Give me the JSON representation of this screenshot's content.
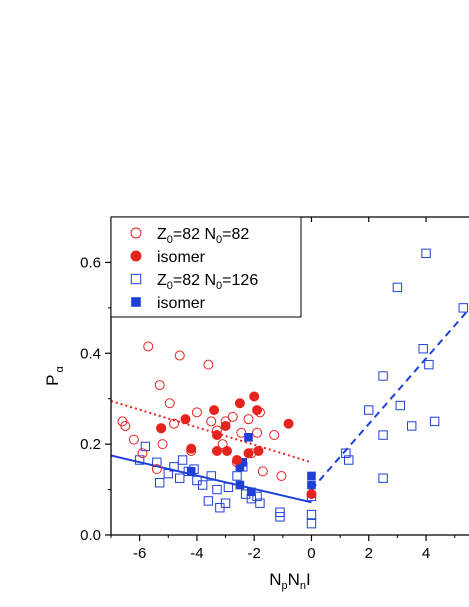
{
  "chart_data": {
    "type": "scatter",
    "xlabel": {
      "base": "N",
      "sub1": "p",
      "mid": "N",
      "sub2": "n",
      "tail": "I"
    },
    "ylabel": {
      "base": "P",
      "sub": "α"
    },
    "xlim": [
      -7,
      5.5
    ],
    "ylim": [
      0.0,
      0.7
    ],
    "xticks": [
      -6,
      -4,
      -2,
      0,
      2,
      4
    ],
    "yticks": [
      0.0,
      0.2,
      0.4,
      0.6
    ],
    "xtick_labels": [
      "-6",
      "-4",
      "-2",
      "0",
      "2",
      "4"
    ],
    "ytick_labels": [
      "0.0",
      "0.2",
      "0.4",
      "0.6"
    ],
    "legend_position": "top-left",
    "legend": [
      {
        "series": "red_open",
        "marker": "circle-open",
        "color": "#e8231f",
        "parts": [
          "Z",
          "0",
          "=82 N",
          "0",
          "=82"
        ]
      },
      {
        "series": "red_filled",
        "marker": "circle-filled",
        "color": "#e8231f",
        "parts": [
          "isomer"
        ]
      },
      {
        "series": "blue_open",
        "marker": "square-open",
        "color": "#1f3fd8",
        "parts": [
          "Z",
          "0",
          "=82 N",
          "0",
          "=126"
        ]
      },
      {
        "series": "blue_filled",
        "marker": "square-filled",
        "color": "#1f3fd8",
        "parts": [
          "isomer"
        ]
      }
    ],
    "series": [
      {
        "id": "red_open",
        "marker": "circle-open",
        "color": "#e8231f",
        "points": [
          [
            -6.6,
            0.25
          ],
          [
            -6.5,
            0.24
          ],
          [
            -6.2,
            0.21
          ],
          [
            -5.9,
            0.18
          ],
          [
            -5.7,
            0.415
          ],
          [
            -5.3,
            0.33
          ],
          [
            -5.25,
            0.235
          ],
          [
            -5.2,
            0.2
          ],
          [
            -4.95,
            0.29
          ],
          [
            -4.8,
            0.245
          ],
          [
            -4.6,
            0.395
          ],
          [
            -4.2,
            0.185
          ],
          [
            -4.0,
            0.27
          ],
          [
            -3.6,
            0.375
          ],
          [
            -3.5,
            0.25
          ],
          [
            -3.3,
            0.23
          ],
          [
            -3.1,
            0.2
          ],
          [
            -3.0,
            0.25
          ],
          [
            -2.75,
            0.26
          ],
          [
            -2.6,
            0.16
          ],
          [
            -2.45,
            0.225
          ],
          [
            -2.2,
            0.255
          ],
          [
            -2.1,
            0.18
          ],
          [
            -1.9,
            0.225
          ],
          [
            -1.8,
            0.27
          ],
          [
            -1.7,
            0.14
          ],
          [
            -1.3,
            0.22
          ],
          [
            -1.05,
            0.13
          ],
          [
            -5.4,
            0.145
          ]
        ]
      },
      {
        "id": "red_filled",
        "marker": "circle-filled",
        "color": "#e8231f",
        "points": [
          [
            -5.25,
            0.235
          ],
          [
            -4.4,
            0.255
          ],
          [
            -4.2,
            0.19
          ],
          [
            -3.4,
            0.275
          ],
          [
            -3.3,
            0.22
          ],
          [
            -3.3,
            0.185
          ],
          [
            -3.0,
            0.24
          ],
          [
            -2.95,
            0.185
          ],
          [
            -2.6,
            0.165
          ],
          [
            -2.5,
            0.29
          ],
          [
            -2.2,
            0.18
          ],
          [
            -2.0,
            0.305
          ],
          [
            -1.9,
            0.275
          ],
          [
            -1.85,
            0.185
          ],
          [
            -0.8,
            0.245
          ],
          [
            0.0,
            0.09
          ]
        ]
      },
      {
        "id": "blue_open",
        "marker": "square-open",
        "color": "#1f3fd8",
        "points": [
          [
            -6.0,
            0.165
          ],
          [
            -5.8,
            0.195
          ],
          [
            -5.4,
            0.16
          ],
          [
            -5.3,
            0.115
          ],
          [
            -5.0,
            0.135
          ],
          [
            -4.8,
            0.15
          ],
          [
            -4.6,
            0.125
          ],
          [
            -4.5,
            0.165
          ],
          [
            -4.3,
            0.14
          ],
          [
            -4.1,
            0.145
          ],
          [
            -4.0,
            0.12
          ],
          [
            -3.8,
            0.11
          ],
          [
            -3.6,
            0.075
          ],
          [
            -3.5,
            0.13
          ],
          [
            -3.3,
            0.1
          ],
          [
            -3.2,
            0.06
          ],
          [
            -3.0,
            0.07
          ],
          [
            -2.9,
            0.105
          ],
          [
            -2.6,
            0.13
          ],
          [
            -2.4,
            0.15
          ],
          [
            -2.3,
            0.09
          ],
          [
            -2.1,
            0.08
          ],
          [
            -1.9,
            0.085
          ],
          [
            -1.8,
            0.07
          ],
          [
            -1.1,
            0.05
          ],
          [
            -1.1,
            0.04
          ],
          [
            0.0,
            0.025
          ],
          [
            0.0,
            0.045
          ],
          [
            0.0,
            0.085
          ],
          [
            1.2,
            0.18
          ],
          [
            1.3,
            0.165
          ],
          [
            2.0,
            0.275
          ],
          [
            2.5,
            0.35
          ],
          [
            2.5,
            0.22
          ],
          [
            2.5,
            0.125
          ],
          [
            3.0,
            0.545
          ],
          [
            3.1,
            0.285
          ],
          [
            3.5,
            0.24
          ],
          [
            3.9,
            0.41
          ],
          [
            4.0,
            0.62
          ],
          [
            4.1,
            0.375
          ],
          [
            4.3,
            0.25
          ],
          [
            5.3,
            0.5
          ]
        ]
      },
      {
        "id": "blue_filled",
        "marker": "square-filled",
        "color": "#1f3fd8",
        "points": [
          [
            -4.2,
            0.14
          ],
          [
            -2.5,
            0.15
          ],
          [
            -2.5,
            0.11
          ],
          [
            -2.4,
            0.16
          ],
          [
            -2.2,
            0.215
          ],
          [
            -2.1,
            0.095
          ],
          [
            0.0,
            0.11
          ],
          [
            0.0,
            0.13
          ]
        ]
      }
    ],
    "fits": [
      {
        "color": "#e8231f",
        "style": "dotted",
        "from": [
          -7.0,
          0.295
        ],
        "to": [
          0.0,
          0.16
        ]
      },
      {
        "color": "#1f3fd8",
        "style": "solid",
        "from": [
          -7.0,
          0.175
        ],
        "to": [
          0.0,
          0.072
        ]
      },
      {
        "color": "#1f3fd8",
        "style": "dashed",
        "from": [
          0.0,
          0.1
        ],
        "to": [
          5.5,
          0.497
        ]
      }
    ]
  }
}
